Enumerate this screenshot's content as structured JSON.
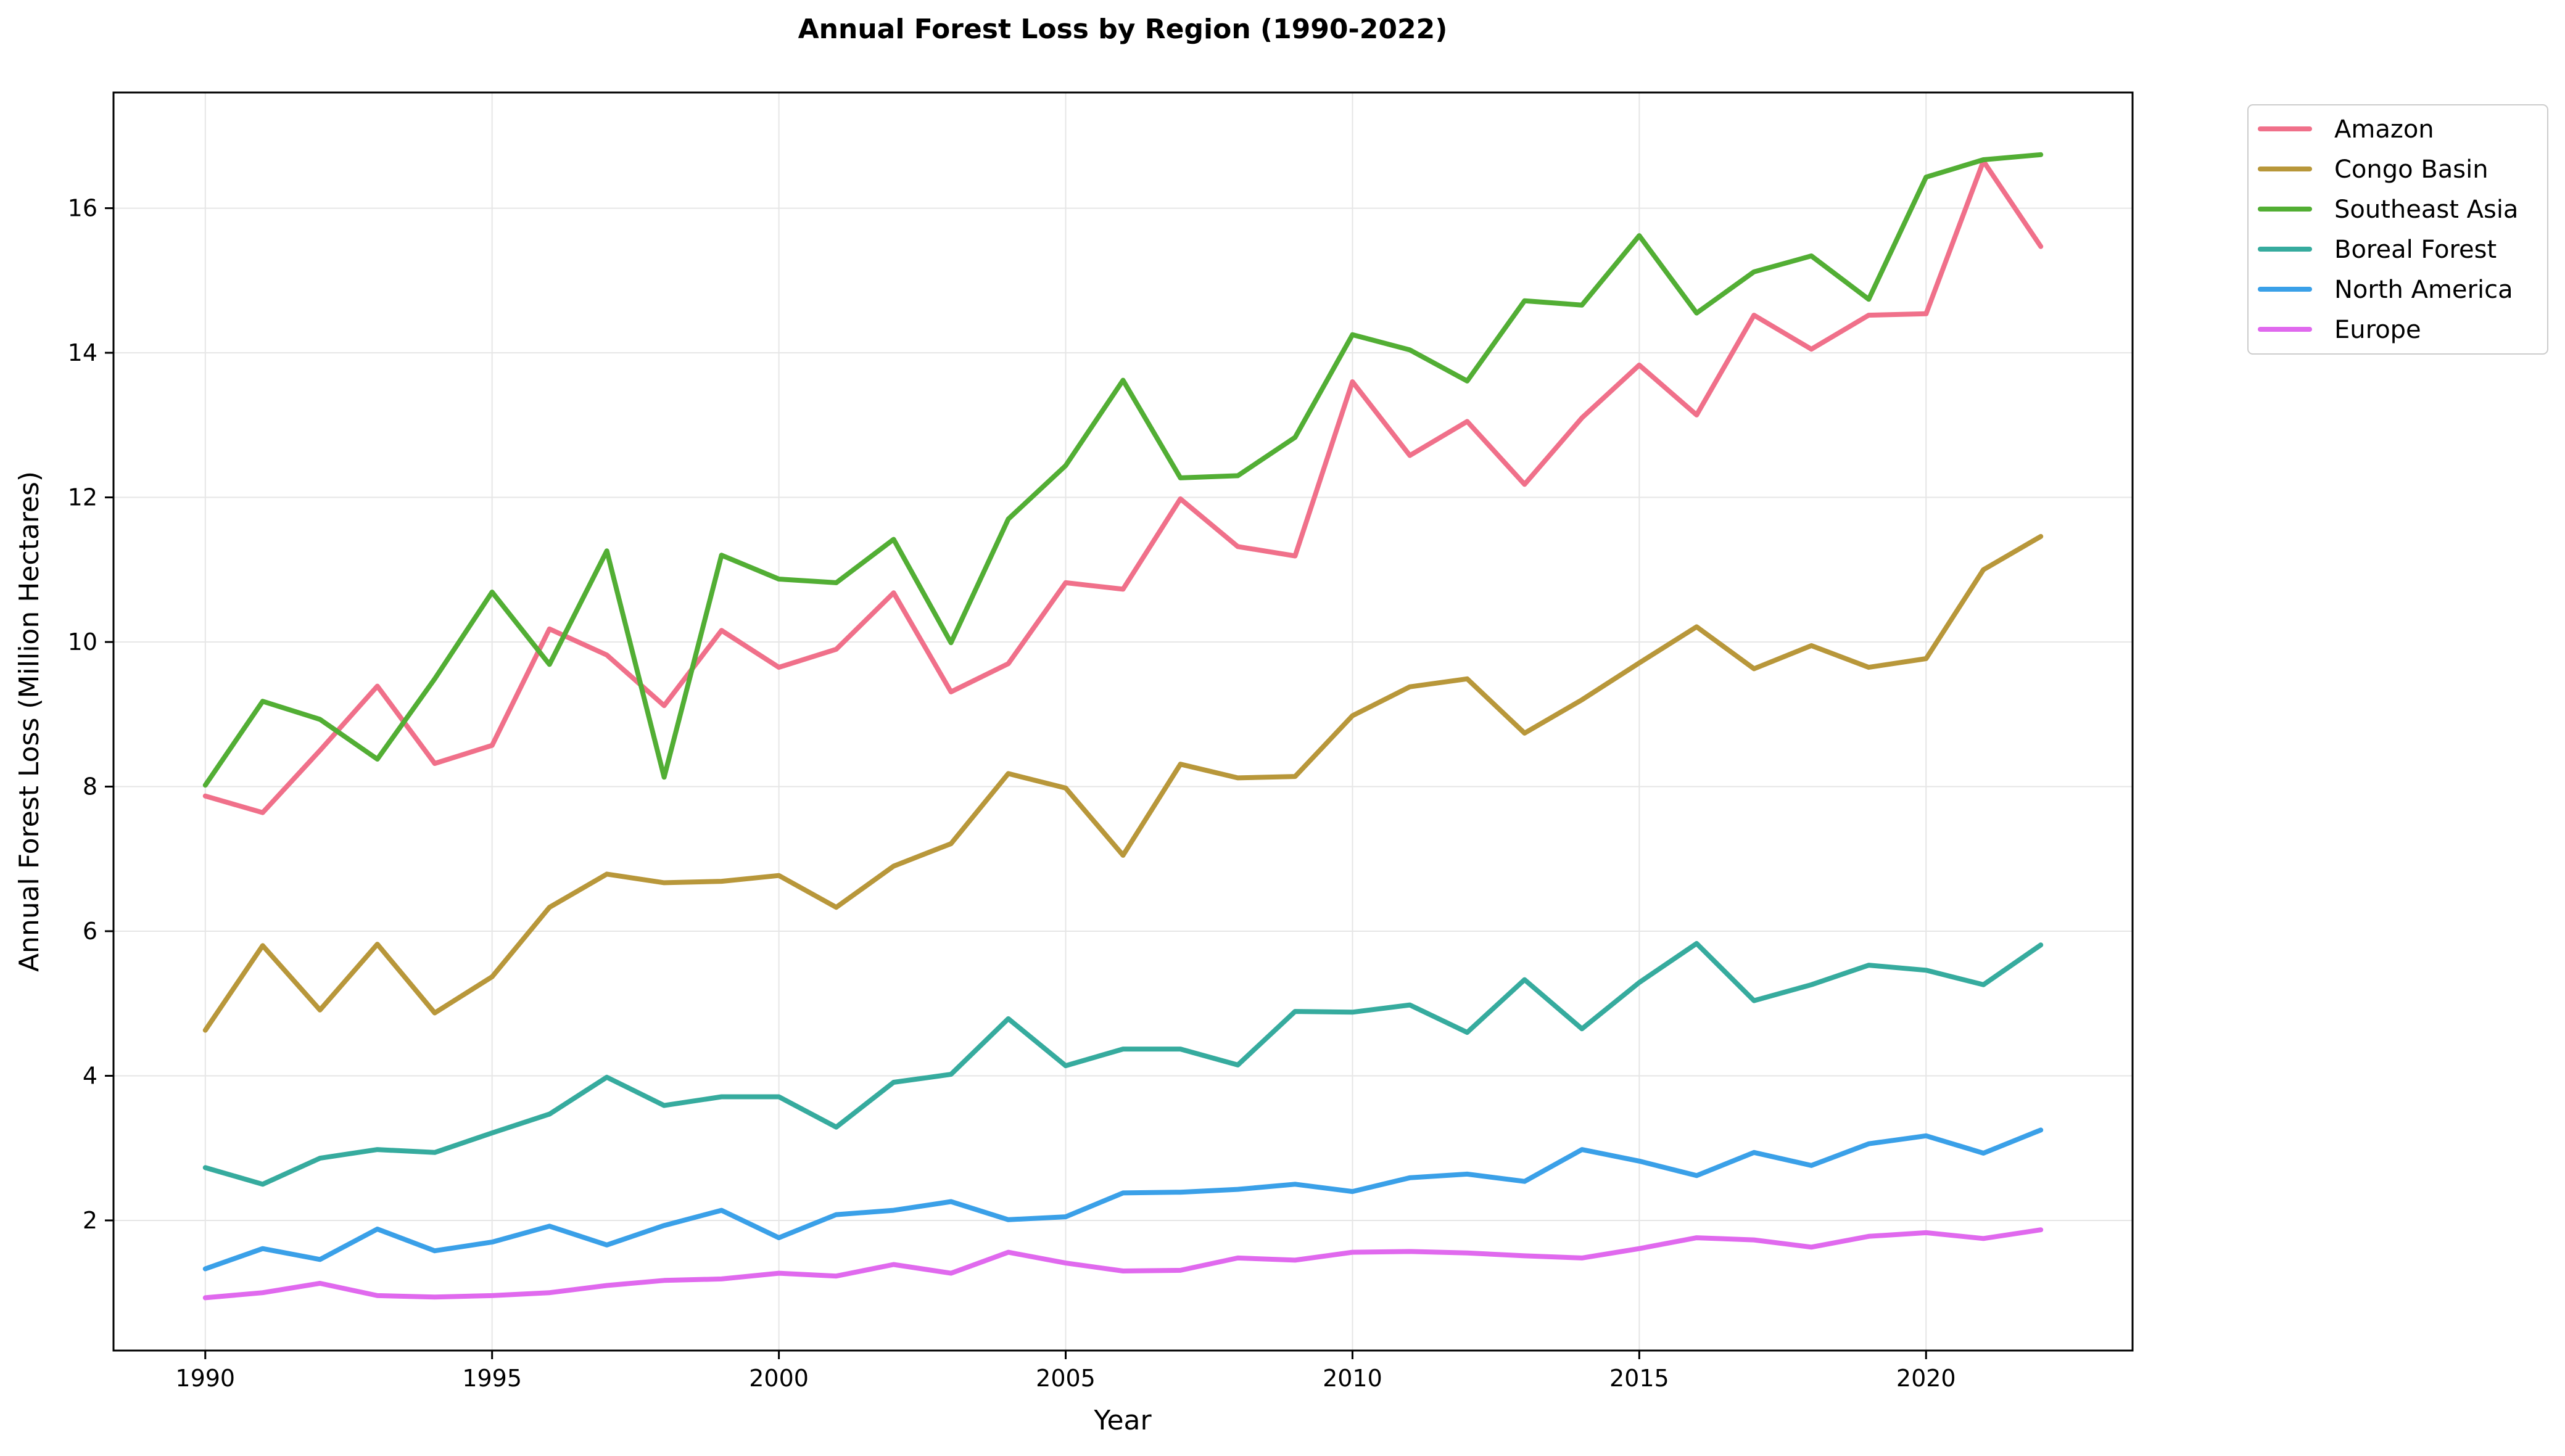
{
  "chart_data": {
    "type": "line",
    "title": "Annual Forest Loss by Region (1990-2022)",
    "xlabel": "Year",
    "ylabel": "Annual Forest Loss (Million Hectares)",
    "xlim": [
      1988.4,
      2023.6
    ],
    "ylim": [
      0.2,
      17.6
    ],
    "xticks": [
      1990,
      1995,
      2000,
      2005,
      2010,
      2015,
      2020
    ],
    "yticks": [
      2,
      4,
      6,
      8,
      10,
      12,
      14,
      16
    ],
    "grid": true,
    "legend_position": "outside-top-right",
    "x": [
      1990,
      1991,
      1992,
      1993,
      1994,
      1995,
      1996,
      1997,
      1998,
      1999,
      2000,
      2001,
      2002,
      2003,
      2004,
      2005,
      2006,
      2007,
      2008,
      2009,
      2010,
      2011,
      2012,
      2013,
      2014,
      2015,
      2016,
      2017,
      2018,
      2019,
      2020,
      2021,
      2022
    ],
    "series": [
      {
        "name": "Amazon",
        "color": "#f0708a",
        "values": [
          7.87,
          7.64,
          8.5,
          9.39,
          8.32,
          8.57,
          10.18,
          9.82,
          9.12,
          10.16,
          9.65,
          9.9,
          10.68,
          9.31,
          9.7,
          10.82,
          10.73,
          11.98,
          11.32,
          11.19,
          13.6,
          12.58,
          13.05,
          12.18,
          13.1,
          13.83,
          13.14,
          14.52,
          14.05,
          14.52,
          14.54,
          16.65,
          15.47
        ]
      },
      {
        "name": "Congo Basin",
        "color": "#b8973a",
        "values": [
          4.63,
          5.8,
          4.91,
          5.82,
          4.87,
          5.37,
          6.33,
          6.79,
          6.67,
          6.69,
          6.77,
          6.33,
          6.9,
          7.21,
          8.18,
          7.98,
          7.05,
          8.31,
          8.12,
          8.14,
          8.98,
          9.38,
          9.49,
          8.74,
          9.2,
          9.71,
          10.21,
          9.63,
          9.95,
          9.65,
          9.77,
          11.0,
          11.46
        ]
      },
      {
        "name": "Southeast Asia",
        "color": "#52ae34",
        "values": [
          8.02,
          9.18,
          8.93,
          8.38,
          9.49,
          10.69,
          9.69,
          11.26,
          8.13,
          11.2,
          10.87,
          10.82,
          11.42,
          9.99,
          11.7,
          12.44,
          13.62,
          12.27,
          12.3,
          12.83,
          14.25,
          14.04,
          13.61,
          14.72,
          14.66,
          15.62,
          14.55,
          15.12,
          15.34,
          14.74,
          16.43,
          16.67,
          16.74
        ]
      },
      {
        "name": "Boreal Forest",
        "color": "#36ab9e",
        "values": [
          2.73,
          2.5,
          2.86,
          2.98,
          2.94,
          3.21,
          3.47,
          3.98,
          3.59,
          3.71,
          3.71,
          3.29,
          3.91,
          4.02,
          4.79,
          4.14,
          4.37,
          4.37,
          4.15,
          4.89,
          4.88,
          4.98,
          4.6,
          5.33,
          4.65,
          5.29,
          5.83,
          5.04,
          5.26,
          5.53,
          5.46,
          5.26,
          5.81
        ]
      },
      {
        "name": "North America",
        "color": "#3aa0e8",
        "values": [
          1.33,
          1.61,
          1.46,
          1.88,
          1.58,
          1.7,
          1.92,
          1.66,
          1.93,
          2.14,
          1.76,
          2.08,
          2.14,
          2.26,
          2.01,
          2.05,
          2.38,
          2.39,
          2.43,
          2.5,
          2.4,
          2.59,
          2.64,
          2.54,
          2.98,
          2.82,
          2.62,
          2.94,
          2.76,
          3.06,
          3.17,
          2.93,
          3.25
        ]
      },
      {
        "name": "Europe",
        "color": "#e069ee",
        "values": [
          0.93,
          1.0,
          1.13,
          0.96,
          0.94,
          0.96,
          1.0,
          1.1,
          1.17,
          1.19,
          1.27,
          1.23,
          1.39,
          1.27,
          1.56,
          1.41,
          1.3,
          1.31,
          1.48,
          1.45,
          1.56,
          1.57,
          1.55,
          1.51,
          1.48,
          1.61,
          1.76,
          1.73,
          1.63,
          1.78,
          1.83,
          1.75,
          1.87
        ]
      }
    ]
  }
}
